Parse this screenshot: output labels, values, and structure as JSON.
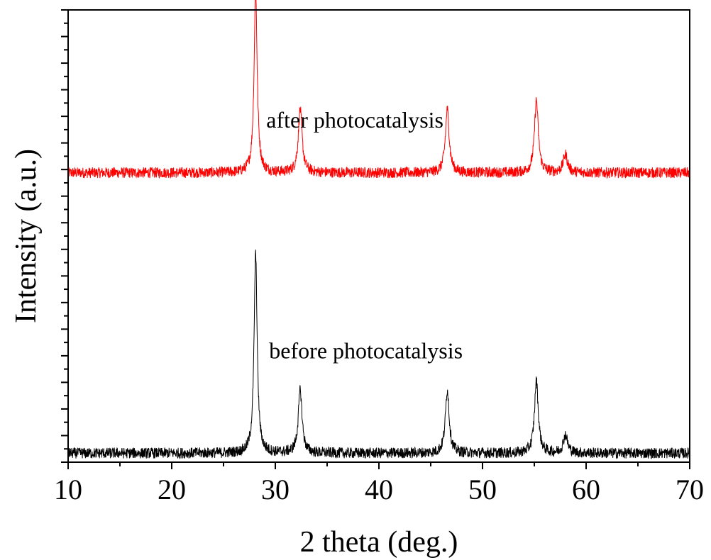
{
  "chart_data": {
    "type": "line",
    "title": "",
    "xlabel": "2 theta (deg.)",
    "ylabel": "Intensity (a.u.)",
    "xlim": [
      10,
      70
    ],
    "x_ticks": [
      10,
      20,
      30,
      40,
      50,
      60,
      70
    ],
    "x_tick_labels": [
      "10",
      "20",
      "30",
      "40",
      "50",
      "60",
      "70"
    ],
    "y_tick_labels_shown": false,
    "grid": false,
    "legend": "none",
    "annotations": [
      {
        "text": "after photocatalysis",
        "series": "after",
        "x": 30.5
      },
      {
        "text": "before photocatalysis",
        "series": "before",
        "x": 30.5
      }
    ],
    "series": [
      {
        "id": "after",
        "color": "#ff0000",
        "baseline": 0.04,
        "noise": 0.012,
        "offset": 0.6,
        "peaks": [
          {
            "x": 28.1,
            "height": 0.4,
            "width": 0.18
          },
          {
            "x": 32.4,
            "height": 0.14,
            "width": 0.22
          },
          {
            "x": 46.6,
            "height": 0.14,
            "width": 0.22
          },
          {
            "x": 55.2,
            "height": 0.16,
            "width": 0.22
          },
          {
            "x": 58.0,
            "height": 0.04,
            "width": 0.25
          }
        ]
      },
      {
        "id": "before",
        "color": "#000000",
        "baseline": 0.02,
        "noise": 0.012,
        "offset": 0.0,
        "peaks": [
          {
            "x": 28.1,
            "height": 0.44,
            "width": 0.18
          },
          {
            "x": 32.4,
            "height": 0.14,
            "width": 0.22
          },
          {
            "x": 46.6,
            "height": 0.14,
            "width": 0.22
          },
          {
            "x": 55.2,
            "height": 0.16,
            "width": 0.22
          },
          {
            "x": 58.0,
            "height": 0.04,
            "width": 0.25
          }
        ]
      }
    ]
  }
}
